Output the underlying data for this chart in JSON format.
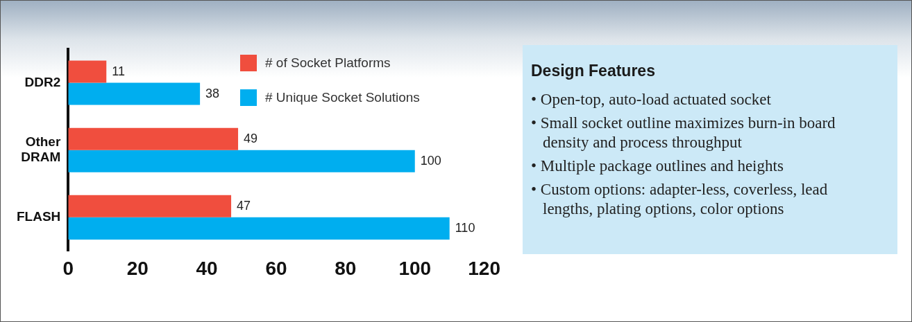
{
  "chart_data": [
    {
      "type": "bar",
      "orientation": "horizontal",
      "categories": [
        "DDR2",
        "Other DRAM",
        "FLASH"
      ],
      "series": [
        {
          "name": "# of Socket Platforms",
          "color": "#f04e3e",
          "values": [
            11,
            49,
            47
          ]
        },
        {
          "name": "# Unique Socket Solutions",
          "color": "#00aeef",
          "values": [
            38,
            100,
            110
          ]
        }
      ],
      "xlim": [
        0,
        120
      ],
      "xticks": [
        0,
        20,
        40,
        60,
        80,
        100,
        120
      ],
      "grid": false,
      "legend": "top right",
      "data_labels": true
    },
    {
      "type": "other",
      "title": "Design Features",
      "annotations": [
        "• Open-top, auto-load actuated socket",
        "• Small socket outline maximizes burn-in board density and process throughput",
        "• Multiple package outlines and heights",
        "• Custom options: adapter-less, coverless, lead lengths, plating options, color options"
      ]
    }
  ]
}
